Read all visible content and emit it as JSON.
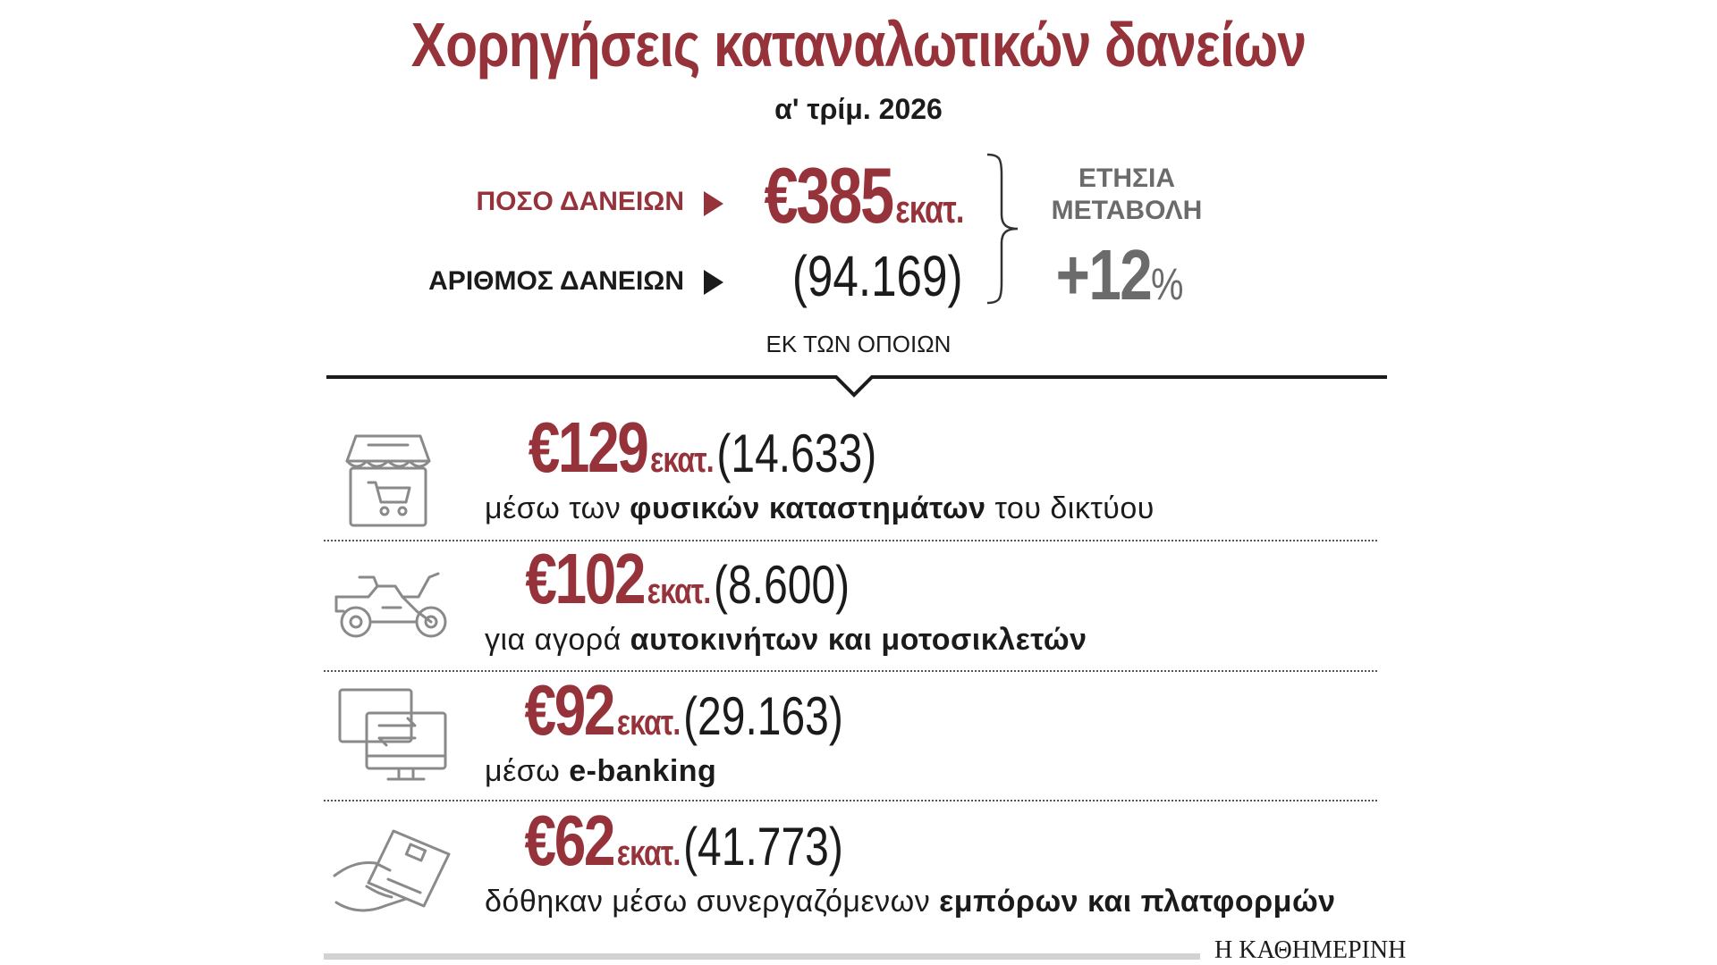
{
  "title": "Χορηγήσεις καταναλωτικών δανείων",
  "subtitle": "α' τρίμ. 2026",
  "summary": {
    "amount_label": "ΠΟΣΟ ΔΑΝΕΙΩΝ",
    "amount_value": "€385",
    "amount_unit": "εκατ.",
    "count_label": "ΑΡΙΘΜΟΣ ΔΑΝΕΙΩΝ",
    "count_value": "(94.169)",
    "change_label": "ΕΤΗΣΙΑ ΜΕΤΑΒΟΛΗ",
    "change_value": "+12",
    "change_unit": "%"
  },
  "of_which_label": "ΕΚ ΤΩΝ ΟΠΟΙΩΝ",
  "rows": [
    {
      "icon": "shop-cart-icon",
      "amount": "€129",
      "unit": "εκατ.",
      "count": "(14.633)",
      "desc_plain": "μέσω των ",
      "desc_bold": "φυσικών καταστημάτων",
      "desc_tail": " του δικτύου"
    },
    {
      "icon": "motorcycle-icon",
      "amount": "€102",
      "unit": "εκατ.",
      "count": "(8.600)",
      "desc_plain": "για αγορά ",
      "desc_bold": "αυτοκινήτων και μοτοσικλετών",
      "desc_tail": ""
    },
    {
      "icon": "computer-transfer-icon",
      "amount": "€92",
      "unit": "εκατ.",
      "count": "(29.163)",
      "desc_plain": "μέσω ",
      "desc_bold": "e-banking",
      "desc_tail": ""
    },
    {
      "icon": "card-in-hand-icon",
      "amount": "€62",
      "unit": "εκατ.",
      "count": "(41.773)",
      "desc_plain": "δόθηκαν μέσω συνεργαζόμενων ",
      "desc_bold": "εμπόρων και πλατφορμών",
      "desc_tail": ""
    }
  ],
  "source": "Η ΚΑΘΗΜΕΡΙΝΗ",
  "colors": {
    "accent": "#96323a",
    "text": "#1b1b1b",
    "muted": "#6b6b6b",
    "icon": "#8a8a8a"
  },
  "chart_data": {
    "type": "table",
    "title": "Χορηγήσεις καταναλωτικών δανείων",
    "subtitle": "α' τρίμ. 2026",
    "total": {
      "amount": 385,
      "amount_unit": "εκατ.",
      "count": 94169,
      "yoy_change_pct": 12
    },
    "columns": [
      "amount",
      "count",
      "channel"
    ],
    "rows": [
      {
        "amount": 129,
        "count": 14633,
        "channel": "μέσω των φυσικών καταστημάτων του δικτύου"
      },
      {
        "amount": 102,
        "count": 8600,
        "channel": "για αγορά αυτοκινήτων και μοτοσικλετών"
      },
      {
        "amount": 92,
        "count": 29163,
        "channel": "μέσω e-banking"
      },
      {
        "amount": 62,
        "count": 41773,
        "channel": "δόθηκαν μέσω συνεργαζόμενων εμπόρων και πλατφορμών"
      }
    ]
  }
}
